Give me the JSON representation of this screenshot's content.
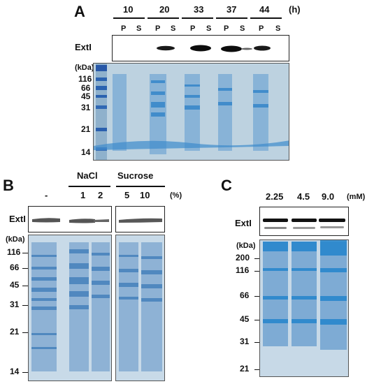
{
  "panel_a": {
    "letter": "A",
    "timepoints": [
      "10",
      "20",
      "33",
      "37",
      "44"
    ],
    "time_unit": "(h)",
    "fractions": [
      "P",
      "S",
      "P",
      "S",
      "P",
      "S",
      "P",
      "S",
      "P",
      "S"
    ],
    "blot_label": "ExtI",
    "kda_label": "(kDa)",
    "markers": [
      "116",
      "66",
      "45",
      "31",
      "21",
      "14"
    ]
  },
  "panel_b": {
    "letter": "B",
    "control": "-",
    "nacl": {
      "label": "NaCl",
      "concs": [
        "1",
        "2"
      ]
    },
    "sucrose": {
      "label": "Sucrose",
      "concs": [
        "5",
        "10"
      ]
    },
    "unit": "(%)",
    "blot_label": "ExtI",
    "kda_label": "(kDa)",
    "markers": [
      "116",
      "66",
      "45",
      "31",
      "21",
      "14"
    ]
  },
  "panel_c": {
    "letter": "C",
    "concs": [
      "2.25",
      "4.5",
      "9.0"
    ],
    "unit": "(mM)",
    "blot_label": "ExtI",
    "kda_label": "(kDa)",
    "markers": [
      "200",
      "116",
      "66",
      "45",
      "31",
      "21"
    ]
  }
}
